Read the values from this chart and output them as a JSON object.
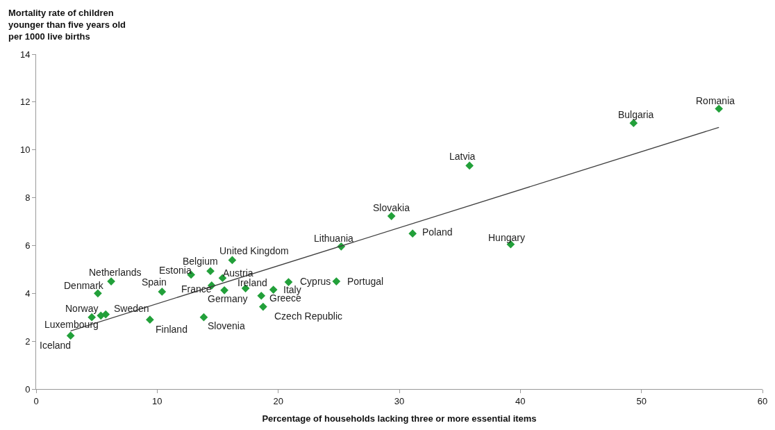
{
  "chart_data": {
    "type": "scatter",
    "xlabel": "Percentage of households lacking three or more essential items",
    "ylabel": "Mortality rate of children\nyounger than five years old\nper 1000 live births",
    "xlim": [
      0,
      60
    ],
    "xticks": [
      0,
      10,
      20,
      30,
      40,
      50,
      60
    ],
    "ylim": [
      0,
      14
    ],
    "yticks": [
      0,
      2,
      4,
      6,
      8,
      10,
      12,
      14
    ],
    "marker": "diamond",
    "series": [
      {
        "color": "#22a03a",
        "x": [
          2.85,
          4.6,
          5.35,
          5.75,
          5.1,
          6.2,
          10.4,
          9.4,
          12.8,
          14.4,
          14.5,
          15.4,
          15.55,
          13.85,
          16.2,
          17.3,
          18.6,
          18.75,
          19.6,
          20.85,
          24.8,
          25.2,
          29.35,
          31.1,
          39.2,
          35.8,
          49.35,
          56.4
        ],
        "values": [
          2.23,
          3.0,
          3.07,
          3.12,
          4.0,
          4.5,
          4.07,
          2.9,
          4.78,
          4.93,
          4.33,
          4.64,
          4.13,
          3.0,
          5.39,
          4.21,
          3.9,
          3.44,
          4.15,
          4.47,
          4.5,
          5.96,
          7.23,
          6.5,
          6.05,
          9.34,
          11.12,
          11.72
        ]
      },
      {
        "type": "line",
        "color": "#404040",
        "line_style": "solid",
        "marker": "none",
        "x": [
          2.85,
          56.4
        ],
        "values": [
          2.43,
          10.94
        ]
      }
    ],
    "annotations": [
      {
        "text": "Iceland",
        "x": 2.85,
        "y": 2.23
      },
      {
        "text": "Luxembourg",
        "x": 4.6,
        "y": 3.0
      },
      {
        "text": "Norway",
        "x": 5.35,
        "y": 3.07
      },
      {
        "text": "Sweden",
        "x": 5.75,
        "y": 3.12
      },
      {
        "text": "Denmark",
        "x": 5.1,
        "y": 4.0
      },
      {
        "text": "Netherlands",
        "x": 6.2,
        "y": 4.5
      },
      {
        "text": "Spain",
        "x": 10.4,
        "y": 4.07
      },
      {
        "text": "Finland",
        "x": 9.4,
        "y": 2.9
      },
      {
        "text": "Estonia",
        "x": 12.8,
        "y": 4.78
      },
      {
        "text": "Belgium",
        "x": 14.4,
        "y": 4.93
      },
      {
        "text": "France",
        "x": 14.5,
        "y": 4.33
      },
      {
        "text": "Austria",
        "x": 15.4,
        "y": 4.64
      },
      {
        "text": "Germany",
        "x": 15.55,
        "y": 4.13
      },
      {
        "text": "Slovenia",
        "x": 13.85,
        "y": 3.0
      },
      {
        "text": "United Kingdom",
        "x": 16.2,
        "y": 5.39
      },
      {
        "text": "Ireland",
        "x": 17.3,
        "y": 4.21
      },
      {
        "text": "Greece",
        "x": 18.6,
        "y": 3.9
      },
      {
        "text": "Czech Republic",
        "x": 18.75,
        "y": 3.44
      },
      {
        "text": "Italy",
        "x": 19.6,
        "y": 4.15
      },
      {
        "text": "Cyprus",
        "x": 20.85,
        "y": 4.47
      },
      {
        "text": "Portugal",
        "x": 24.8,
        "y": 4.5
      },
      {
        "text": "Lithuania",
        "x": 25.2,
        "y": 5.96
      },
      {
        "text": "Slovakia",
        "x": 29.35,
        "y": 7.23
      },
      {
        "text": "Poland",
        "x": 31.1,
        "y": 6.5
      },
      {
        "text": "Hungary",
        "x": 39.2,
        "y": 6.05
      },
      {
        "text": "Latvia",
        "x": 35.8,
        "y": 9.34
      },
      {
        "text": "Bulgaria",
        "x": 49.35,
        "y": 11.12
      },
      {
        "text": "Romania",
        "x": 56.4,
        "y": 11.72
      }
    ]
  }
}
